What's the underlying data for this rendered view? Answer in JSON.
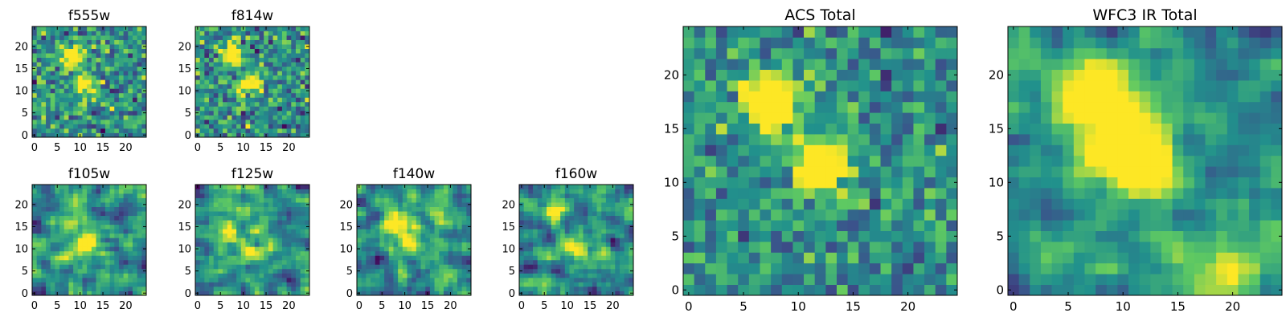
{
  "colormap": [
    "#440154",
    "#3b528b",
    "#21918c",
    "#5ec962",
    "#fde725"
  ],
  "chart_data": [
    {
      "type": "heatmap",
      "title": "f555w",
      "size": 25,
      "xticks": [
        0,
        5,
        10,
        15,
        20
      ],
      "yticks": [
        0,
        5,
        10,
        15,
        20
      ],
      "noise": 0.55,
      "peaks": [
        [
          8,
          17.5,
          2.0,
          0.7
        ],
        [
          11,
          11.5,
          1.6,
          0.7
        ]
      ],
      "seed": 11
    },
    {
      "type": "heatmap",
      "title": "f814w",
      "size": 25,
      "xticks": [
        0,
        5,
        10,
        15,
        20
      ],
      "yticks": [
        0,
        5,
        10,
        15,
        20
      ],
      "noise": 0.55,
      "peaks": [
        [
          7.5,
          18,
          1.8,
          0.7
        ],
        [
          11.5,
          11.5,
          1.6,
          0.7
        ]
      ],
      "seed": 23
    },
    {
      "type": "heatmap",
      "title": "f105w",
      "size": 25,
      "xticks": [
        0,
        5,
        10,
        15,
        20
      ],
      "yticks": [
        0,
        5,
        10,
        15,
        20
      ],
      "noise": 0.55,
      "smooth": 1,
      "peaks": [
        [
          8,
          16,
          2.2,
          0.5
        ],
        [
          11.5,
          11,
          2.0,
          0.5
        ]
      ],
      "seed": 37
    },
    {
      "type": "heatmap",
      "title": "f125w",
      "size": 25,
      "xticks": [
        0,
        5,
        10,
        15,
        20
      ],
      "yticks": [
        0,
        5,
        10,
        15,
        20
      ],
      "noise": 0.55,
      "smooth": 1,
      "peaks": [
        [
          7,
          14,
          2.2,
          0.4
        ],
        [
          12,
          10,
          2.0,
          0.4
        ]
      ],
      "seed": 41
    },
    {
      "type": "heatmap",
      "title": "f140w",
      "size": 25,
      "xticks": [
        0,
        5,
        10,
        15,
        20
      ],
      "yticks": [
        0,
        5,
        10,
        15,
        20
      ],
      "noise": 0.55,
      "smooth": 1,
      "peaks": [
        [
          7.5,
          16,
          2.2,
          0.6
        ],
        [
          11.5,
          12,
          2.0,
          0.6
        ]
      ],
      "seed": 53
    },
    {
      "type": "heatmap",
      "title": "f160w",
      "size": 25,
      "xticks": [
        0,
        5,
        10,
        15,
        20
      ],
      "yticks": [
        0,
        5,
        10,
        15,
        20
      ],
      "noise": 0.55,
      "smooth": 1,
      "peaks": [
        [
          7,
          18.5,
          2.0,
          0.6
        ],
        [
          11.5,
          11,
          2.0,
          0.6
        ]
      ],
      "seed": 67
    },
    {
      "type": "heatmap",
      "title": "ACS Total",
      "size": 25,
      "xticks": [
        0,
        5,
        10,
        15,
        20
      ],
      "yticks": [
        0,
        5,
        10,
        15,
        20
      ],
      "noise": 0.45,
      "peaks": [
        [
          7.5,
          17.5,
          1.7,
          0.95
        ],
        [
          12,
          11.5,
          1.6,
          1.0
        ]
      ],
      "seed": 79
    },
    {
      "type": "heatmap",
      "title": "WFC3 IR Total",
      "size": 25,
      "xticks": [
        0,
        5,
        10,
        15,
        20
      ],
      "yticks": [
        0,
        5,
        10,
        15,
        20
      ],
      "noise": 0.4,
      "smooth": 1,
      "peaks": [
        [
          7.2,
          18,
          2.0,
          0.95
        ],
        [
          11.5,
          11.5,
          2.0,
          0.9
        ],
        [
          9.5,
          14,
          2.5,
          0.4
        ],
        [
          19,
          1.5,
          2.5,
          0.4
        ]
      ],
      "seed": 97
    }
  ]
}
